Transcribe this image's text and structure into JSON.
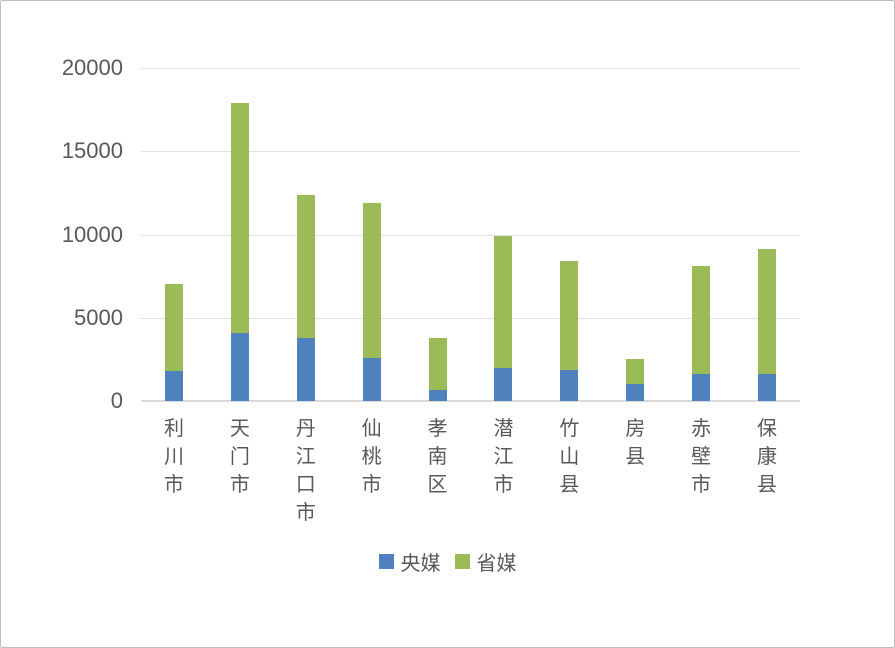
{
  "chart_data": {
    "type": "bar",
    "stacked": true,
    "title": "",
    "xlabel": "",
    "ylabel": "",
    "categories": [
      "利川市",
      "天门市",
      "丹江口市",
      "仙桃市",
      "孝南区",
      "潜江市",
      "竹山县",
      "房县",
      "赤壁市",
      "保康县"
    ],
    "series": [
      {
        "name": "央媒",
        "color": "#4f81bd",
        "values": [
          1800,
          4100,
          3800,
          2600,
          650,
          2000,
          1850,
          1050,
          1600,
          1650
        ]
      },
      {
        "name": "省媒",
        "color": "#9bbb59",
        "values": [
          5200,
          13800,
          8600,
          9300,
          3150,
          7900,
          6550,
          1450,
          6500,
          7500
        ]
      }
    ],
    "ylim": [
      0,
      20000
    ],
    "yticks": [
      0,
      5000,
      10000,
      15000,
      20000
    ],
    "grid": true,
    "legend_position": "bottom"
  },
  "styles": {
    "series_blue": "#4f81bd",
    "series_green": "#9bbb59",
    "text_color": "#595959",
    "gridline_color": "#e0e0e0",
    "axisline_color": "#d9d9d9",
    "border_color": "#bdbdbd",
    "background": "#ffffff"
  }
}
